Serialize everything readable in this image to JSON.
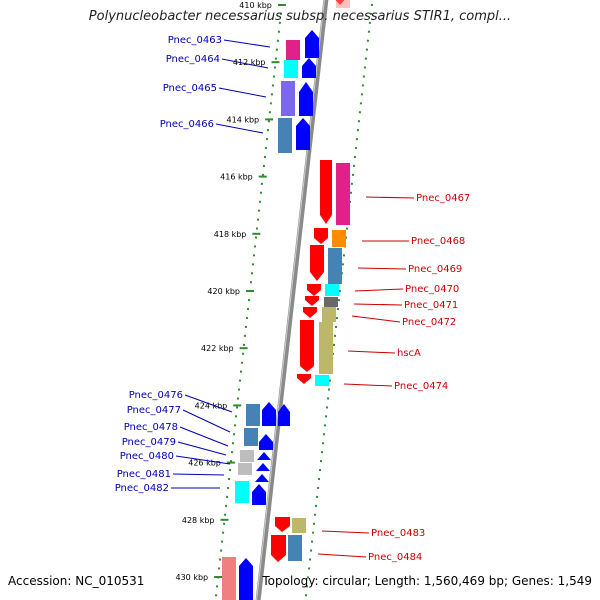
{
  "title": "Polynucleobacter necessarius subsp. necessarius STIR1, compl...",
  "footer": {
    "accession": "Accession: NC_010531",
    "summary": "Topology: circular; Length: 1,560,469 bp; Genes: 1,549"
  },
  "ruler": [
    {
      "label": "410 kbp",
      "kbp": 410
    },
    {
      "label": "412 kbp",
      "kbp": 412
    },
    {
      "label": "414 kbp",
      "kbp": 414
    },
    {
      "label": "416 kbp",
      "kbp": 416
    },
    {
      "label": "418 kbp",
      "kbp": 418
    },
    {
      "label": "420 kbp",
      "kbp": 420
    },
    {
      "label": "422 kbp",
      "kbp": 422
    },
    {
      "label": "424 kbp",
      "kbp": 424
    },
    {
      "label": "426 kbp",
      "kbp": 426
    },
    {
      "label": "428 kbp",
      "kbp": 428
    },
    {
      "label": "430 kbp",
      "kbp": 430
    }
  ],
  "genes_left": [
    {
      "label": "Pnec_0463",
      "color": "#e0218a",
      "start": 411.3,
      "end": 412.2
    },
    {
      "label": "Pnec_0464",
      "color": "#00ffff",
      "start": 412.2,
      "end": 412.9
    },
    {
      "label": "Pnec_0465",
      "color": "#7b68ee",
      "start": 412.9,
      "end": 414.1
    },
    {
      "label": "Pnec_0466",
      "color": "#4682b4",
      "start": 414.1,
      "end": 415.4
    },
    {
      "label": "Pnec_0476",
      "color": "#4682b4",
      "start": 423.9,
      "end": 424.8
    },
    {
      "label": "Pnec_0477",
      "color": "#4682b4",
      "start": 424.8,
      "end": 425.4
    },
    {
      "label": "Pnec_0478",
      "color": "#4682b4",
      "start": 425.0,
      "end": 425.5
    },
    {
      "label": "Pnec_0479",
      "color": "#bdbdbd",
      "start": 425.6,
      "end": 426.1
    },
    {
      "label": "Pnec_0480",
      "color": "#bdbdbd",
      "start": 426.1,
      "end": 426.5
    },
    {
      "label": "Pnec_0481",
      "color": "#00ffff",
      "start": 426.6,
      "end": 427.0
    },
    {
      "label": "Pnec_0482",
      "color": "#00ffff",
      "start": 427.0,
      "end": 427.4
    }
  ],
  "genes_right": [
    {
      "label": "Pnec_0467",
      "color": "#e0218a",
      "start": 416.0,
      "end": 418.2
    },
    {
      "label": "Pnec_0468",
      "color": "#ff8c00",
      "start": 418.2,
      "end": 418.8
    },
    {
      "label": "Pnec_0469",
      "color": "#4682b4",
      "start": 418.8,
      "end": 420.0
    },
    {
      "label": "Pnec_0470",
      "color": "#00ffff",
      "start": 420.0,
      "end": 420.4
    },
    {
      "label": "Pnec_0471",
      "color": "#696969",
      "start": 420.4,
      "end": 420.8
    },
    {
      "label": "Pnec_0472",
      "color": "#bdb76b",
      "start": 420.8,
      "end": 421.2
    },
    {
      "label": "hscA",
      "color": "#bdb76b",
      "start": 421.2,
      "end": 423.3
    },
    {
      "label": "Pnec_0474",
      "color": "#00ffff",
      "start": 423.3,
      "end": 423.7
    },
    {
      "label": "Pnec_0483",
      "color": "#bdb76b",
      "start": 428.0,
      "end": 428.6
    },
    {
      "label": "Pnec_0484",
      "color": "#4682b4",
      "start": 428.6,
      "end": 429.5
    }
  ]
}
